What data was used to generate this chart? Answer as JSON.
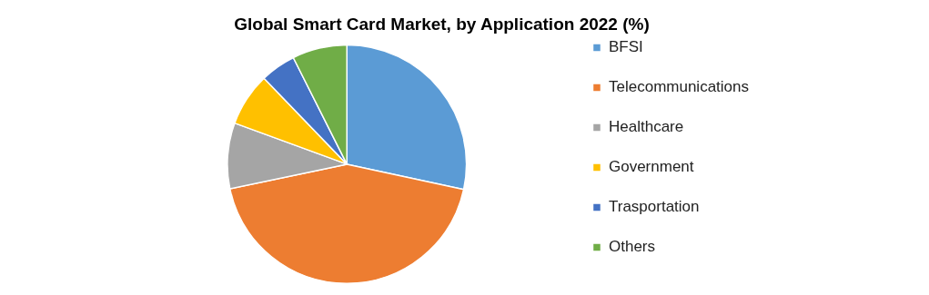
{
  "chart_data": {
    "type": "pie",
    "title": "Global Smart Card Market, by Application 2022 (%)",
    "categories": [
      "BFSI",
      "Telecommunications",
      "Healthcare",
      "Government",
      "Trasportation",
      "Others"
    ],
    "values": [
      28.4,
      43.3,
      8.9,
      7.2,
      4.8,
      7.4
    ],
    "colors": [
      "#5b9bd5",
      "#ed7d31",
      "#a5a5a5",
      "#ffc000",
      "#4472c4",
      "#70ad47"
    ],
    "legend": "right"
  }
}
